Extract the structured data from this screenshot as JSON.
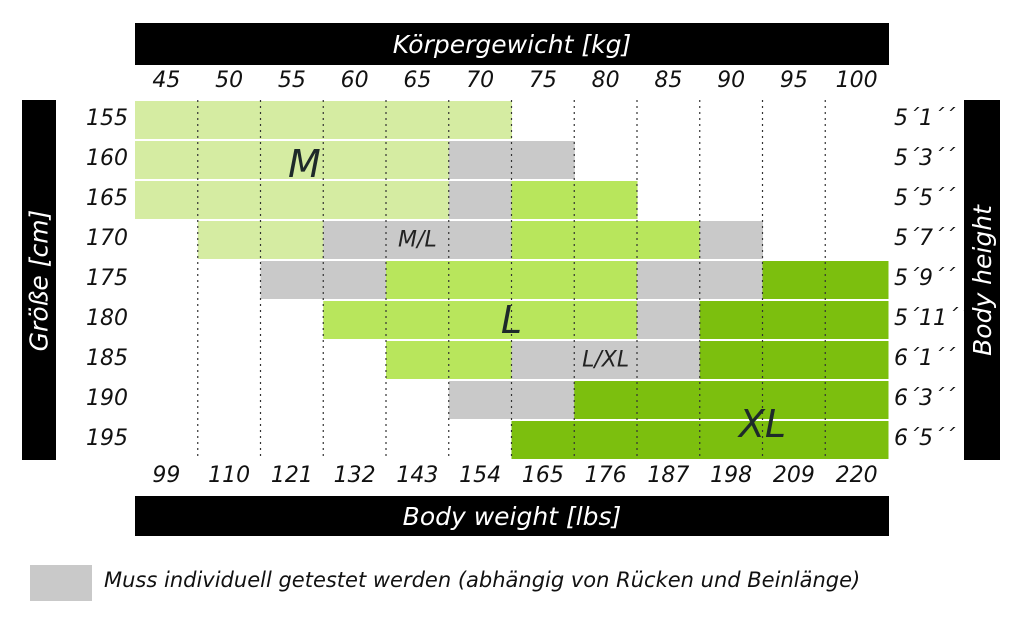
{
  "chart_data": {
    "type": "heatmap",
    "x_top": {
      "label": "Körpergewicht [kg]",
      "ticks": [
        "45",
        "50",
        "55",
        "60",
        "65",
        "70",
        "75",
        "80",
        "85",
        "90",
        "95",
        "100"
      ]
    },
    "x_bottom": {
      "label": "Body weight [lbs]",
      "ticks": [
        "99",
        "110",
        "121",
        "132",
        "143",
        "154",
        "165",
        "176",
        "187",
        "198",
        "209",
        "220"
      ]
    },
    "y_left": {
      "label": "Größe [cm]",
      "ticks": [
        "155",
        "160",
        "165",
        "170",
        "175",
        "180",
        "185",
        "190",
        "195"
      ]
    },
    "y_right": {
      "label": "Body height",
      "ticks": [
        "5´1´´",
        "5´3´´",
        "5´5´´",
        "5´7´´",
        "5´9´´",
        "5´11´´",
        "6´1´´",
        "6´3´´",
        "6´5´´"
      ]
    },
    "categories": [
      {
        "key": "M",
        "label": "M",
        "color": "#d5eca2"
      },
      {
        "key": "MT",
        "label": "",
        "color": "#c9c9c9"
      },
      {
        "key": "L",
        "label": "L",
        "color": "#b8e65c"
      },
      {
        "key": "XL",
        "label": "XL",
        "color": "#7cbf0e"
      }
    ],
    "region_labels": [
      {
        "text": "M",
        "row": 1.6,
        "col": 2.7,
        "size": "large"
      },
      {
        "text": "M/L",
        "row": 3.5,
        "col": 4.5,
        "size": "small"
      },
      {
        "text": "L",
        "row": 5.5,
        "col": 6.0,
        "size": "large"
      },
      {
        "text": "L/XL",
        "row": 6.5,
        "col": 7.5,
        "size": "small"
      },
      {
        "text": "XL",
        "row": 8.1,
        "col": 10.0,
        "size": "large"
      }
    ],
    "cells": [
      [
        "M",
        "M",
        "M",
        "M",
        "M",
        "M",
        "",
        "",
        "",
        "",
        "",
        ""
      ],
      [
        "M",
        "M",
        "M",
        "M",
        "M",
        "MT",
        "MT",
        "",
        "",
        "",
        "",
        ""
      ],
      [
        "M",
        "M",
        "M",
        "M",
        "M",
        "MT",
        "L",
        "L",
        "",
        "",
        "",
        ""
      ],
      [
        "",
        "M",
        "M",
        "MT",
        "MT",
        "MT",
        "L",
        "L",
        "L",
        "MT",
        "",
        ""
      ],
      [
        "",
        "",
        "MT",
        "MT",
        "L",
        "L",
        "L",
        "L",
        "MT",
        "MT",
        "XL",
        "XL"
      ],
      [
        "",
        "",
        "",
        "L",
        "L",
        "L",
        "L",
        "L",
        "MT",
        "XL",
        "XL",
        "XL"
      ],
      [
        "",
        "",
        "",
        "",
        "L",
        "L",
        "MT",
        "MT",
        "MT",
        "XL",
        "XL",
        "XL"
      ],
      [
        "",
        "",
        "",
        "",
        "",
        "MT",
        "MT",
        "XL",
        "XL",
        "XL",
        "XL",
        "XL"
      ],
      [
        "",
        "",
        "",
        "",
        "",
        "",
        "XL",
        "XL",
        "XL",
        "XL",
        "XL",
        "XL"
      ]
    ],
    "grid": true,
    "legend": {
      "color": "#c9c9c9",
      "text": "Muss individuell getestet werden (abhängig von Rücken und Beinlänge)",
      "position": "bottom-left"
    }
  }
}
